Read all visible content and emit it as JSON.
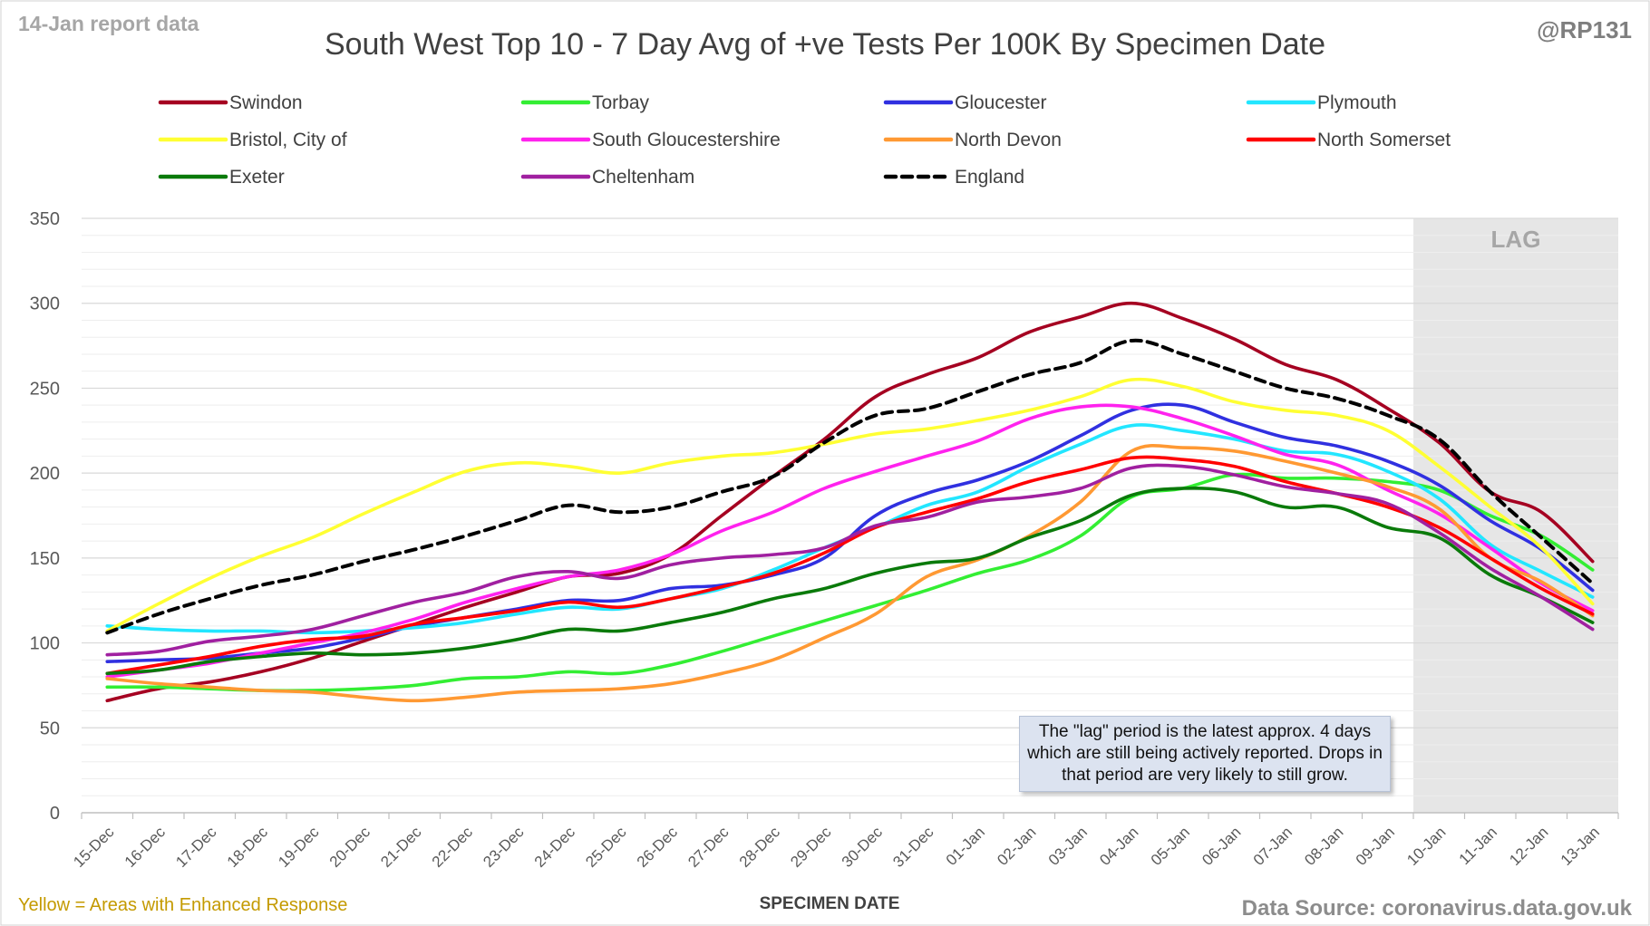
{
  "header": {
    "report_label": "14-Jan report data",
    "author_handle": "@RP131"
  },
  "footer": {
    "enhanced_note": "Yellow = Areas with Enhanced Response",
    "source": "Data Source: coronavirus.data.gov.uk"
  },
  "lag_note": "The \"lag\" period is the latest approx. 4 days which are still being actively reported. Drops in that period are very likely to still grow.",
  "colors": {
    "report_label": "#a6a6a6",
    "enhanced_note": "#c49a00",
    "source": "#8c8c8c",
    "gridline": "#d9d9d9",
    "lag_shade": "#e6e6e6"
  },
  "chart_data": {
    "type": "line",
    "title": "South West Top 10 - 7 Day Avg of +ve Tests Per 100K By Specimen Date",
    "xlabel": "SPECIMEN DATE",
    "ylabel": "",
    "ylim": [
      0,
      350
    ],
    "yticks": [
      0,
      50,
      100,
      150,
      200,
      250,
      300,
      350
    ],
    "grid": true,
    "legend_position": "top",
    "lag_label": "LAG",
    "lag_start": "10-Jan",
    "lag_end": "13-Jan",
    "categories": [
      "15-Dec",
      "16-Dec",
      "17-Dec",
      "18-Dec",
      "19-Dec",
      "20-Dec",
      "21-Dec",
      "22-Dec",
      "23-Dec",
      "24-Dec",
      "25-Dec",
      "26-Dec",
      "27-Dec",
      "28-Dec",
      "29-Dec",
      "30-Dec",
      "31-Dec",
      "01-Jan",
      "02-Jan",
      "03-Jan",
      "04-Jan",
      "05-Jan",
      "06-Jan",
      "07-Jan",
      "08-Jan",
      "09-Jan",
      "10-Jan",
      "11-Jan",
      "12-Jan",
      "13-Jan"
    ],
    "series": [
      {
        "name": "Swindon",
        "color": "#a50021",
        "dashed": false,
        "values": [
          66,
          73,
          77,
          83,
          91,
          101,
          111,
          121,
          130,
          139,
          141,
          152,
          175,
          198,
          220,
          245,
          258,
          268,
          283,
          292,
          300,
          291,
          279,
          264,
          255,
          238,
          218,
          189,
          177,
          148
        ]
      },
      {
        "name": "Torbay",
        "color": "#33ee33",
        "dashed": false,
        "values": [
          74,
          74,
          73,
          72,
          72,
          73,
          75,
          79,
          80,
          83,
          82,
          87,
          95,
          104,
          113,
          122,
          131,
          141,
          149,
          163,
          186,
          191,
          199,
          197,
          197,
          195,
          190,
          175,
          163,
          143
        ]
      },
      {
        "name": "Gloucester",
        "color": "#3030e0",
        "dashed": false,
        "values": [
          89,
          90,
          91,
          94,
          97,
          103,
          110,
          115,
          120,
          125,
          125,
          132,
          134,
          140,
          150,
          175,
          188,
          196,
          207,
          222,
          237,
          240,
          230,
          221,
          216,
          207,
          193,
          172,
          155,
          131
        ]
      },
      {
        "name": "Plymouth",
        "color": "#22e6ff",
        "dashed": false,
        "values": [
          110,
          108,
          107,
          107,
          106,
          107,
          109,
          112,
          117,
          121,
          120,
          126,
          132,
          143,
          156,
          168,
          181,
          189,
          204,
          217,
          228,
          225,
          220,
          213,
          211,
          201,
          185,
          158,
          142,
          127
        ]
      },
      {
        "name": "Bristol, City of",
        "color": "#ffff33",
        "dashed": false,
        "values": [
          107,
          123,
          138,
          151,
          162,
          176,
          189,
          201,
          206,
          204,
          200,
          206,
          210,
          212,
          217,
          223,
          226,
          231,
          237,
          245,
          255,
          251,
          242,
          237,
          234,
          225,
          204,
          180,
          156,
          123
        ]
      },
      {
        "name": "South Gloucestershire",
        "color": "#ff22ee",
        "dashed": false,
        "values": [
          80,
          84,
          88,
          94,
          100,
          106,
          114,
          124,
          132,
          139,
          143,
          152,
          166,
          177,
          191,
          201,
          210,
          219,
          232,
          239,
          239,
          232,
          222,
          211,
          205,
          190,
          176,
          156,
          135,
          119
        ]
      },
      {
        "name": "North Devon",
        "color": "#ff9933",
        "dashed": false,
        "values": [
          79,
          76,
          74,
          72,
          71,
          68,
          66,
          68,
          71,
          72,
          73,
          76,
          82,
          90,
          103,
          117,
          139,
          149,
          163,
          183,
          213,
          215,
          213,
          207,
          200,
          192,
          179,
          150,
          136,
          116
        ]
      },
      {
        "name": "North Somerset",
        "color": "#ff0000",
        "dashed": false,
        "values": [
          82,
          87,
          92,
          98,
          102,
          104,
          111,
          115,
          119,
          124,
          121,
          126,
          133,
          141,
          153,
          168,
          177,
          185,
          195,
          202,
          209,
          208,
          204,
          195,
          188,
          180,
          168,
          150,
          132,
          117
        ]
      },
      {
        "name": "Exeter",
        "color": "#0a7a0a",
        "dashed": false,
        "values": [
          82,
          84,
          89,
          92,
          94,
          93,
          94,
          97,
          102,
          108,
          107,
          112,
          118,
          126,
          132,
          141,
          147,
          150,
          162,
          172,
          187,
          191,
          189,
          180,
          180,
          168,
          162,
          140,
          127,
          112
        ]
      },
      {
        "name": "Cheltenham",
        "color": "#a020a0",
        "dashed": false,
        "values": [
          93,
          95,
          101,
          104,
          108,
          116,
          124,
          130,
          139,
          142,
          138,
          146,
          150,
          152,
          156,
          169,
          174,
          183,
          186,
          191,
          203,
          204,
          199,
          192,
          188,
          182,
          165,
          144,
          127,
          108
        ]
      },
      {
        "name": "England",
        "color": "#000000",
        "dashed": true,
        "values": [
          106,
          117,
          126,
          134,
          140,
          148,
          155,
          163,
          172,
          181,
          177,
          180,
          189,
          198,
          218,
          234,
          238,
          248,
          258,
          265,
          278,
          270,
          260,
          250,
          244,
          234,
          220,
          189,
          162,
          135
        ]
      }
    ]
  }
}
